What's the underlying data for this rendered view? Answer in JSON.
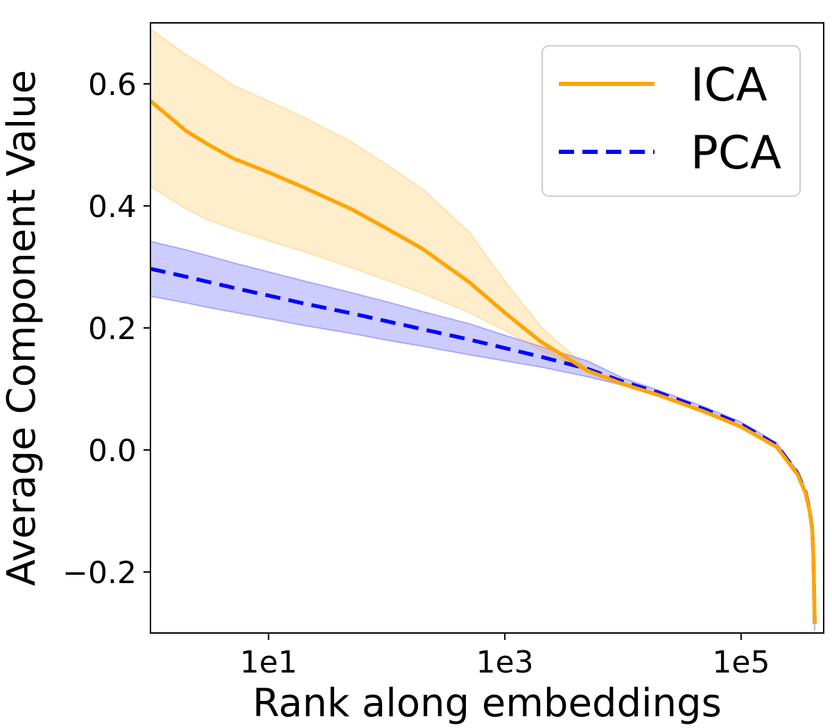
{
  "chart_data": {
    "type": "line",
    "xlabel": "Rank along embeddings",
    "ylabel": "Average Component Value",
    "x_scale": "log",
    "xlim": [
      1,
      500000
    ],
    "ylim": [
      -0.3,
      0.7
    ],
    "grid": false,
    "legend_position": "top-right",
    "x_ticks": [
      {
        "value": 10,
        "label": "1e1"
      },
      {
        "value": 1000,
        "label": "1e3"
      },
      {
        "value": 100000,
        "label": "1e5"
      }
    ],
    "y_ticks": [
      {
        "value": -0.2,
        "label": "−0.2"
      },
      {
        "value": 0.0,
        "label": "0.0"
      },
      {
        "value": 0.2,
        "label": "0.2"
      },
      {
        "value": 0.4,
        "label": "0.4"
      },
      {
        "value": 0.6,
        "label": "0.6"
      }
    ],
    "x": [
      1,
      2,
      3,
      5,
      10,
      20,
      50,
      100,
      200,
      500,
      1000,
      2000,
      5000,
      10000,
      20000,
      50000,
      100000,
      200000,
      300000,
      350000,
      380000,
      400000,
      410000,
      420000
    ],
    "series": [
      {
        "name": "ICA",
        "color": "#ffa500",
        "style": "solid",
        "values": [
          0.572,
          0.523,
          0.502,
          0.478,
          0.455,
          0.43,
          0.395,
          0.363,
          0.33,
          0.275,
          0.225,
          0.178,
          0.13,
          0.108,
          0.09,
          0.062,
          0.038,
          0.005,
          -0.04,
          -0.07,
          -0.1,
          -0.13,
          -0.18,
          -0.285
        ],
        "band_lower": [
          0.432,
          0.395,
          0.378,
          0.362,
          0.343,
          0.325,
          0.299,
          0.278,
          0.257,
          0.225,
          0.196,
          0.164,
          0.127,
          0.106,
          0.088,
          0.06,
          0.036,
          0.002,
          -0.044,
          -0.075,
          -0.106,
          -0.14,
          -0.19,
          -0.3
        ],
        "band_upper": [
          0.69,
          0.648,
          0.627,
          0.598,
          0.572,
          0.545,
          0.505,
          0.468,
          0.428,
          0.357,
          0.277,
          0.203,
          0.134,
          0.11,
          0.092,
          0.064,
          0.04,
          0.008,
          -0.036,
          -0.065,
          -0.094,
          -0.12,
          -0.17,
          -0.27
        ]
      },
      {
        "name": "PCA",
        "color": "#0000ff",
        "style": "dashed",
        "values": [
          0.297,
          0.284,
          0.276,
          0.266,
          0.253,
          0.24,
          0.224,
          0.211,
          0.198,
          0.181,
          0.167,
          0.153,
          0.133,
          0.112,
          0.094,
          0.066,
          0.042,
          0.008,
          -0.038,
          -0.068,
          -0.098,
          -0.13,
          -0.18,
          -0.288
        ],
        "band_lower": [
          0.252,
          0.241,
          0.234,
          0.226,
          0.215,
          0.204,
          0.191,
          0.18,
          0.17,
          0.156,
          0.146,
          0.136,
          0.12,
          0.106,
          0.09,
          0.062,
          0.038,
          0.004,
          -0.042,
          -0.072,
          -0.102,
          -0.136,
          -0.186,
          -0.296
        ],
        "band_upper": [
          0.342,
          0.328,
          0.319,
          0.307,
          0.292,
          0.277,
          0.258,
          0.243,
          0.227,
          0.207,
          0.188,
          0.17,
          0.146,
          0.118,
          0.098,
          0.07,
          0.046,
          0.012,
          -0.034,
          -0.064,
          -0.094,
          -0.124,
          -0.174,
          -0.28
        ]
      }
    ]
  }
}
